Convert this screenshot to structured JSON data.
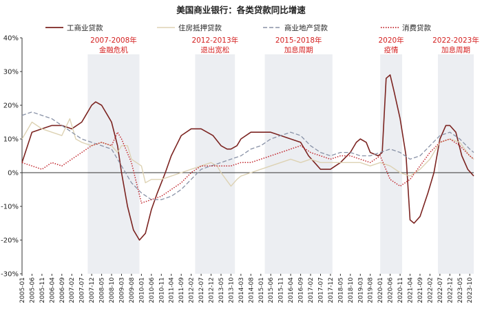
{
  "chart_data": {
    "type": "line",
    "title": "美国商业银行：各类贷款同比增速",
    "xlabel": "",
    "ylabel": "",
    "ylim": [
      -30,
      40
    ],
    "y_ticks": [
      "-30%",
      "-20%",
      "-10%",
      "0%",
      "10%",
      "20%",
      "30%",
      "40%"
    ],
    "x_tick_labels": [
      "2005-01",
      "2005-06",
      "2005-11",
      "2006-04",
      "2006-09",
      "2007-02",
      "2007-07",
      "2007-12",
      "2008-05",
      "2008-10",
      "2009-03",
      "2009-08",
      "2010-01",
      "2010-06",
      "2010-11",
      "2011-04",
      "2011-09",
      "2012-02",
      "2012-07",
      "2012-12",
      "2013-05",
      "2013-10",
      "2014-03",
      "2014-08",
      "2015-01",
      "2015-06",
      "2015-11",
      "2016-04",
      "2016-09",
      "2017-02",
      "2017-07",
      "2017-12",
      "2018-05",
      "2018-10",
      "2019-03",
      "2019-08",
      "2020-01",
      "2020-06",
      "2020-11",
      "2021-04",
      "2021-09",
      "2022-02",
      "2022-07",
      "2022-12",
      "2023-05",
      "2023-10"
    ],
    "x_start": "2005-01",
    "x_end": "2023-12",
    "legend_position": "top",
    "grid": false,
    "shaded_periods": [
      {
        "start": "2007-10",
        "end": "2009-12",
        "label_line1": "2007-2008年",
        "label_line2": "金融危机"
      },
      {
        "start": "2012-04",
        "end": "2013-12",
        "label_line1": "2012-2013年",
        "label_line2": "退出宽松"
      },
      {
        "start": "2015-03",
        "end": "2018-01",
        "label_line1": "2015-2018年",
        "label_line2": "加息周期"
      },
      {
        "start": "2020-01",
        "end": "2020-12",
        "label_line1": "2020年",
        "label_line2": "疫情"
      },
      {
        "start": "2022-06",
        "end": "2023-12",
        "label_line1": "2022-2023年",
        "label_line2": "加息周期"
      }
    ],
    "series": [
      {
        "name": "工商业贷款",
        "color": "#7b2320",
        "dash": "solid",
        "width": 1.6,
        "points": [
          [
            "2005-01",
            3
          ],
          [
            "2005-06",
            12
          ],
          [
            "2005-11",
            13
          ],
          [
            "2006-04",
            14
          ],
          [
            "2006-09",
            14
          ],
          [
            "2007-02",
            13
          ],
          [
            "2007-07",
            15
          ],
          [
            "2007-09",
            17
          ],
          [
            "2007-12",
            20
          ],
          [
            "2008-02",
            21
          ],
          [
            "2008-05",
            20
          ],
          [
            "2008-08",
            17
          ],
          [
            "2008-10",
            15
          ],
          [
            "2009-01",
            8
          ],
          [
            "2009-03",
            0
          ],
          [
            "2009-06",
            -10
          ],
          [
            "2009-09",
            -17
          ],
          [
            "2009-12",
            -20
          ],
          [
            "2010-03",
            -18
          ],
          [
            "2010-06",
            -11
          ],
          [
            "2010-09",
            -6
          ],
          [
            "2011-01",
            0
          ],
          [
            "2011-04",
            5
          ],
          [
            "2011-09",
            11
          ],
          [
            "2012-02",
            13
          ],
          [
            "2012-07",
            13
          ],
          [
            "2012-10",
            12
          ],
          [
            "2013-01",
            11
          ],
          [
            "2013-05",
            8
          ],
          [
            "2013-08",
            7
          ],
          [
            "2013-10",
            7
          ],
          [
            "2014-01",
            8
          ],
          [
            "2014-03",
            10
          ],
          [
            "2014-08",
            12
          ],
          [
            "2015-01",
            12
          ],
          [
            "2015-06",
            12
          ],
          [
            "2015-11",
            11
          ],
          [
            "2016-04",
            10
          ],
          [
            "2016-09",
            9
          ],
          [
            "2017-01",
            5
          ],
          [
            "2017-04",
            3
          ],
          [
            "2017-07",
            1
          ],
          [
            "2017-10",
            1
          ],
          [
            "2017-12",
            1
          ],
          [
            "2018-05",
            3
          ],
          [
            "2018-10",
            6
          ],
          [
            "2019-01",
            9
          ],
          [
            "2019-03",
            10
          ],
          [
            "2019-06",
            9
          ],
          [
            "2019-08",
            6
          ],
          [
            "2019-12",
            5
          ],
          [
            "2020-02",
            6
          ],
          [
            "2020-04",
            28
          ],
          [
            "2020-06",
            29
          ],
          [
            "2020-08",
            24
          ],
          [
            "2020-11",
            16
          ],
          [
            "2021-02",
            5
          ],
          [
            "2021-04",
            -14
          ],
          [
            "2021-06",
            -15
          ],
          [
            "2021-09",
            -13
          ],
          [
            "2022-01",
            -6
          ],
          [
            "2022-04",
            0
          ],
          [
            "2022-07",
            10
          ],
          [
            "2022-10",
            14
          ],
          [
            "2022-12",
            14
          ],
          [
            "2023-03",
            12
          ],
          [
            "2023-06",
            5
          ],
          [
            "2023-09",
            1
          ],
          [
            "2023-12",
            -1
          ]
        ]
      },
      {
        "name": "住房抵押贷款",
        "color": "#ddd2b3",
        "dash": "solid",
        "width": 1.4,
        "points": [
          [
            "2005-01",
            10
          ],
          [
            "2005-06",
            15
          ],
          [
            "2005-11",
            13
          ],
          [
            "2006-04",
            12
          ],
          [
            "2006-09",
            11
          ],
          [
            "2007-01",
            16
          ],
          [
            "2007-04",
            10
          ],
          [
            "2007-07",
            9
          ],
          [
            "2007-12",
            8
          ],
          [
            "2008-05",
            9
          ],
          [
            "2008-10",
            8
          ],
          [
            "2009-01",
            6
          ],
          [
            "2009-03",
            8
          ],
          [
            "2009-06",
            8
          ],
          [
            "2009-08",
            4
          ],
          [
            "2010-01",
            2
          ],
          [
            "2010-03",
            -3
          ],
          [
            "2010-06",
            -2
          ],
          [
            "2010-11",
            -2
          ],
          [
            "2011-04",
            -1
          ],
          [
            "2011-09",
            0
          ],
          [
            "2012-02",
            1
          ],
          [
            "2012-07",
            2
          ],
          [
            "2012-12",
            3
          ],
          [
            "2013-03",
            2
          ],
          [
            "2013-05",
            0
          ],
          [
            "2013-10",
            -4
          ],
          [
            "2014-01",
            -2
          ],
          [
            "2014-03",
            -1
          ],
          [
            "2014-08",
            0
          ],
          [
            "2015-01",
            1
          ],
          [
            "2015-06",
            2
          ],
          [
            "2015-11",
            3
          ],
          [
            "2016-04",
            4
          ],
          [
            "2016-09",
            3
          ],
          [
            "2017-02",
            4
          ],
          [
            "2017-07",
            3
          ],
          [
            "2017-12",
            3
          ],
          [
            "2018-05",
            3
          ],
          [
            "2018-10",
            3
          ],
          [
            "2019-03",
            3
          ],
          [
            "2019-08",
            2
          ],
          [
            "2020-01",
            3
          ],
          [
            "2020-06",
            2
          ],
          [
            "2020-11",
            0
          ],
          [
            "2021-04",
            -1
          ],
          [
            "2021-09",
            1
          ],
          [
            "2022-02",
            4
          ],
          [
            "2022-07",
            9
          ],
          [
            "2022-12",
            10
          ],
          [
            "2023-05",
            9
          ],
          [
            "2023-10",
            5
          ],
          [
            "2023-12",
            4
          ]
        ]
      },
      {
        "name": "商业地产贷款",
        "color": "#8891a6",
        "dash": "6,3",
        "width": 1.3,
        "points": [
          [
            "2005-01",
            17
          ],
          [
            "2005-06",
            18
          ],
          [
            "2005-11",
            17
          ],
          [
            "2006-04",
            16
          ],
          [
            "2006-09",
            14
          ],
          [
            "2007-02",
            12
          ],
          [
            "2007-07",
            10
          ],
          [
            "2007-12",
            9
          ],
          [
            "2008-05",
            8
          ],
          [
            "2008-10",
            7
          ],
          [
            "2009-03",
            2
          ],
          [
            "2009-08",
            -3
          ],
          [
            "2010-01",
            -6
          ],
          [
            "2010-06",
            -8
          ],
          [
            "2010-11",
            -8
          ],
          [
            "2011-04",
            -7
          ],
          [
            "2011-09",
            -5
          ],
          [
            "2012-02",
            -2
          ],
          [
            "2012-07",
            1
          ],
          [
            "2012-12",
            2
          ],
          [
            "2013-05",
            3
          ],
          [
            "2013-10",
            4
          ],
          [
            "2014-03",
            5
          ],
          [
            "2014-08",
            7
          ],
          [
            "2015-01",
            8
          ],
          [
            "2015-06",
            10
          ],
          [
            "2015-11",
            11
          ],
          [
            "2016-04",
            12
          ],
          [
            "2016-09",
            11
          ],
          [
            "2017-02",
            8
          ],
          [
            "2017-07",
            6
          ],
          [
            "2017-12",
            5
          ],
          [
            "2018-05",
            6
          ],
          [
            "2018-10",
            6
          ],
          [
            "2019-03",
            5
          ],
          [
            "2019-08",
            5
          ],
          [
            "2020-01",
            6
          ],
          [
            "2020-06",
            7
          ],
          [
            "2020-11",
            6
          ],
          [
            "2021-04",
            4
          ],
          [
            "2021-09",
            5
          ],
          [
            "2022-02",
            8
          ],
          [
            "2022-07",
            11
          ],
          [
            "2022-12",
            12
          ],
          [
            "2023-05",
            10
          ],
          [
            "2023-10",
            7
          ],
          [
            "2023-12",
            6
          ]
        ]
      },
      {
        "name": "消费贷款",
        "color": "#c0232a",
        "dash": "1.5,2",
        "width": 1.5,
        "points": [
          [
            "2005-01",
            3
          ],
          [
            "2005-06",
            2
          ],
          [
            "2005-11",
            1
          ],
          [
            "2006-04",
            3
          ],
          [
            "2006-09",
            2
          ],
          [
            "2007-02",
            4
          ],
          [
            "2007-07",
            6
          ],
          [
            "2007-12",
            8
          ],
          [
            "2008-05",
            9
          ],
          [
            "2008-10",
            8
          ],
          [
            "2009-01",
            12
          ],
          [
            "2009-03",
            10
          ],
          [
            "2009-08",
            3
          ],
          [
            "2010-01",
            -9
          ],
          [
            "2010-06",
            -8
          ],
          [
            "2010-11",
            -7
          ],
          [
            "2011-04",
            -5
          ],
          [
            "2011-09",
            -3
          ],
          [
            "2012-02",
            0
          ],
          [
            "2012-07",
            2
          ],
          [
            "2012-12",
            2
          ],
          [
            "2013-05",
            2
          ],
          [
            "2013-10",
            2
          ],
          [
            "2014-03",
            3
          ],
          [
            "2014-08",
            3
          ],
          [
            "2015-01",
            4
          ],
          [
            "2015-06",
            5
          ],
          [
            "2015-11",
            6
          ],
          [
            "2016-04",
            7
          ],
          [
            "2016-09",
            8
          ],
          [
            "2017-02",
            6
          ],
          [
            "2017-07",
            5
          ],
          [
            "2017-12",
            4
          ],
          [
            "2018-05",
            5
          ],
          [
            "2018-10",
            5
          ],
          [
            "2019-03",
            4
          ],
          [
            "2019-08",
            3
          ],
          [
            "2020-01",
            5
          ],
          [
            "2020-06",
            -2
          ],
          [
            "2020-11",
            -4
          ],
          [
            "2021-04",
            -2
          ],
          [
            "2021-09",
            2
          ],
          [
            "2022-02",
            6
          ],
          [
            "2022-07",
            9
          ],
          [
            "2022-12",
            10
          ],
          [
            "2023-05",
            8
          ],
          [
            "2023-10",
            5
          ],
          [
            "2023-12",
            4
          ]
        ]
      }
    ]
  }
}
